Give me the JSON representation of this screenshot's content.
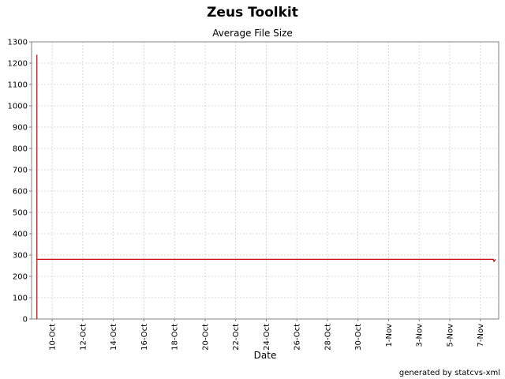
{
  "chart_data": {
    "type": "line",
    "title": "Zeus Toolkit",
    "subtitle": "Average File Size",
    "xlabel": "Date",
    "ylabel": "",
    "ylim": [
      0,
      1300
    ],
    "yticks": [
      0,
      100,
      200,
      300,
      400,
      500,
      600,
      700,
      800,
      900,
      1000,
      1100,
      1200,
      1300
    ],
    "x_range": [
      "2002-10-09",
      "2002-11-08"
    ],
    "xticks": [
      {
        "date": "2002-10-10",
        "label": "10-Oct"
      },
      {
        "date": "2002-10-12",
        "label": "12-Oct"
      },
      {
        "date": "2002-10-14",
        "label": "14-Oct"
      },
      {
        "date": "2002-10-16",
        "label": "16-Oct"
      },
      {
        "date": "2002-10-18",
        "label": "18-Oct"
      },
      {
        "date": "2002-10-20",
        "label": "20-Oct"
      },
      {
        "date": "2002-10-22",
        "label": "22-Oct"
      },
      {
        "date": "2002-10-24",
        "label": "24-Oct"
      },
      {
        "date": "2002-10-26",
        "label": "26-Oct"
      },
      {
        "date": "2002-10-28",
        "label": "28-Oct"
      },
      {
        "date": "2002-10-30",
        "label": "30-Oct"
      },
      {
        "date": "2002-11-01",
        "label": "1-Nov"
      },
      {
        "date": "2002-11-03",
        "label": "3-Nov"
      },
      {
        "date": "2002-11-05",
        "label": "5-Nov"
      },
      {
        "date": "2002-11-07",
        "label": "7-Nov"
      }
    ],
    "grid": true,
    "series": [
      {
        "color": "#cc0000",
        "points": [
          {
            "x": "2002-10-09",
            "y": 0
          },
          {
            "x": "2002-10-09",
            "y": 1240
          },
          {
            "x": "2002-10-09",
            "y": 280
          },
          {
            "x": "2002-11-08",
            "y": 280
          },
          {
            "x": "2002-11-08",
            "y": 270
          },
          {
            "x": "2002-11-08",
            "y": 280
          }
        ]
      }
    ]
  },
  "footer": "generated by statcvs-xml"
}
